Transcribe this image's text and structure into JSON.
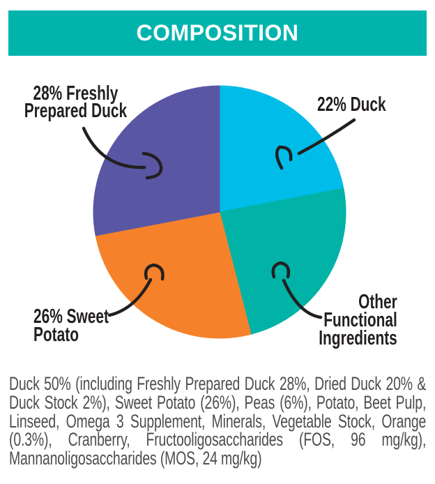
{
  "title": "COMPOSITION",
  "chart_data": {
    "type": "pie",
    "title": "COMPOSITION",
    "start_angle_deg": 0,
    "direction": "clockwise",
    "legend_position": "callout-labels",
    "segments": [
      {
        "label": "Duck",
        "value": 22,
        "color": "#00BCE9",
        "callout": "22% Duck"
      },
      {
        "label": "Other Functional Ingredients",
        "value": 24,
        "color": "#00B3A6",
        "callout": "Other Functional Ingredients"
      },
      {
        "label": "Sweet Potato",
        "value": 26,
        "color": "#F5822A",
        "callout": "26% Sweet Potato"
      },
      {
        "label": "Freshly Prepared Duck",
        "value": 28,
        "color": "#5957A4",
        "callout": "28% Freshly Prepared Duck"
      }
    ]
  },
  "callouts": {
    "freshly_prepared_duck": "28% Freshly\nPrepared Duck",
    "duck": "22% Duck",
    "sweet_potato": "26% Sweet\nPotato",
    "other": "Other\nFunctional\nIngredients"
  },
  "composition_text": "Duck 50% (including Freshly Prepared Duck 28%, Dried Duck 20% & Duck Stock 2%), Sweet Potato (26%), Peas (6%), Potato, Beet Pulp, Linseed, Omega 3 Supplement, Minerals, Vegetable Stock, Orange (0.3%), Cranberry, Fructooligosaccharides (FOS, 96 mg/kg), Mannanoligosaccharides (MOS, 24 mg/kg)",
  "colors": {
    "banner": "#00B4AD",
    "title_text": "#FFFFFF",
    "text_dark": "#231F20",
    "text_gray": "#4D4D4F"
  }
}
